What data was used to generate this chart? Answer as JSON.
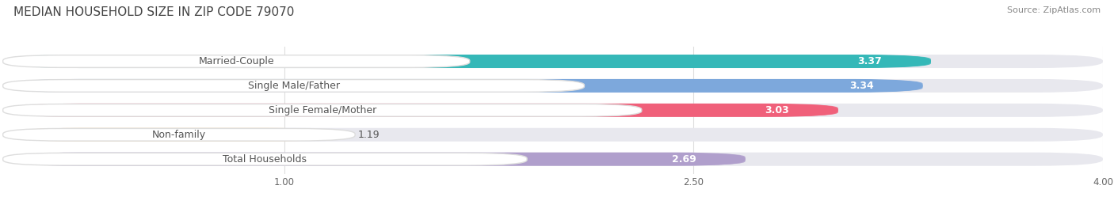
{
  "title": "MEDIAN HOUSEHOLD SIZE IN ZIP CODE 79070",
  "source": "Source: ZipAtlas.com",
  "categories": [
    "Married-Couple",
    "Single Male/Father",
    "Single Female/Mother",
    "Non-family",
    "Total Households"
  ],
  "values": [
    3.37,
    3.34,
    3.03,
    1.19,
    2.69
  ],
  "bar_colors": [
    "#35b8b8",
    "#7da8dc",
    "#f0607a",
    "#f5c98a",
    "#b09fcc"
  ],
  "track_color": "#e8e8ee",
  "label_bg_color": "#ffffff",
  "xlim_data": [
    0.0,
    4.0
  ],
  "xticks": [
    1.0,
    2.5,
    4.0
  ],
  "title_fontsize": 11,
  "source_fontsize": 8,
  "label_fontsize": 9,
  "value_fontsize": 9,
  "background_color": "#ffffff",
  "bar_height": 0.55,
  "label_text_color": "#555555",
  "value_text_color": "#ffffff",
  "grid_color": "#dddddd"
}
